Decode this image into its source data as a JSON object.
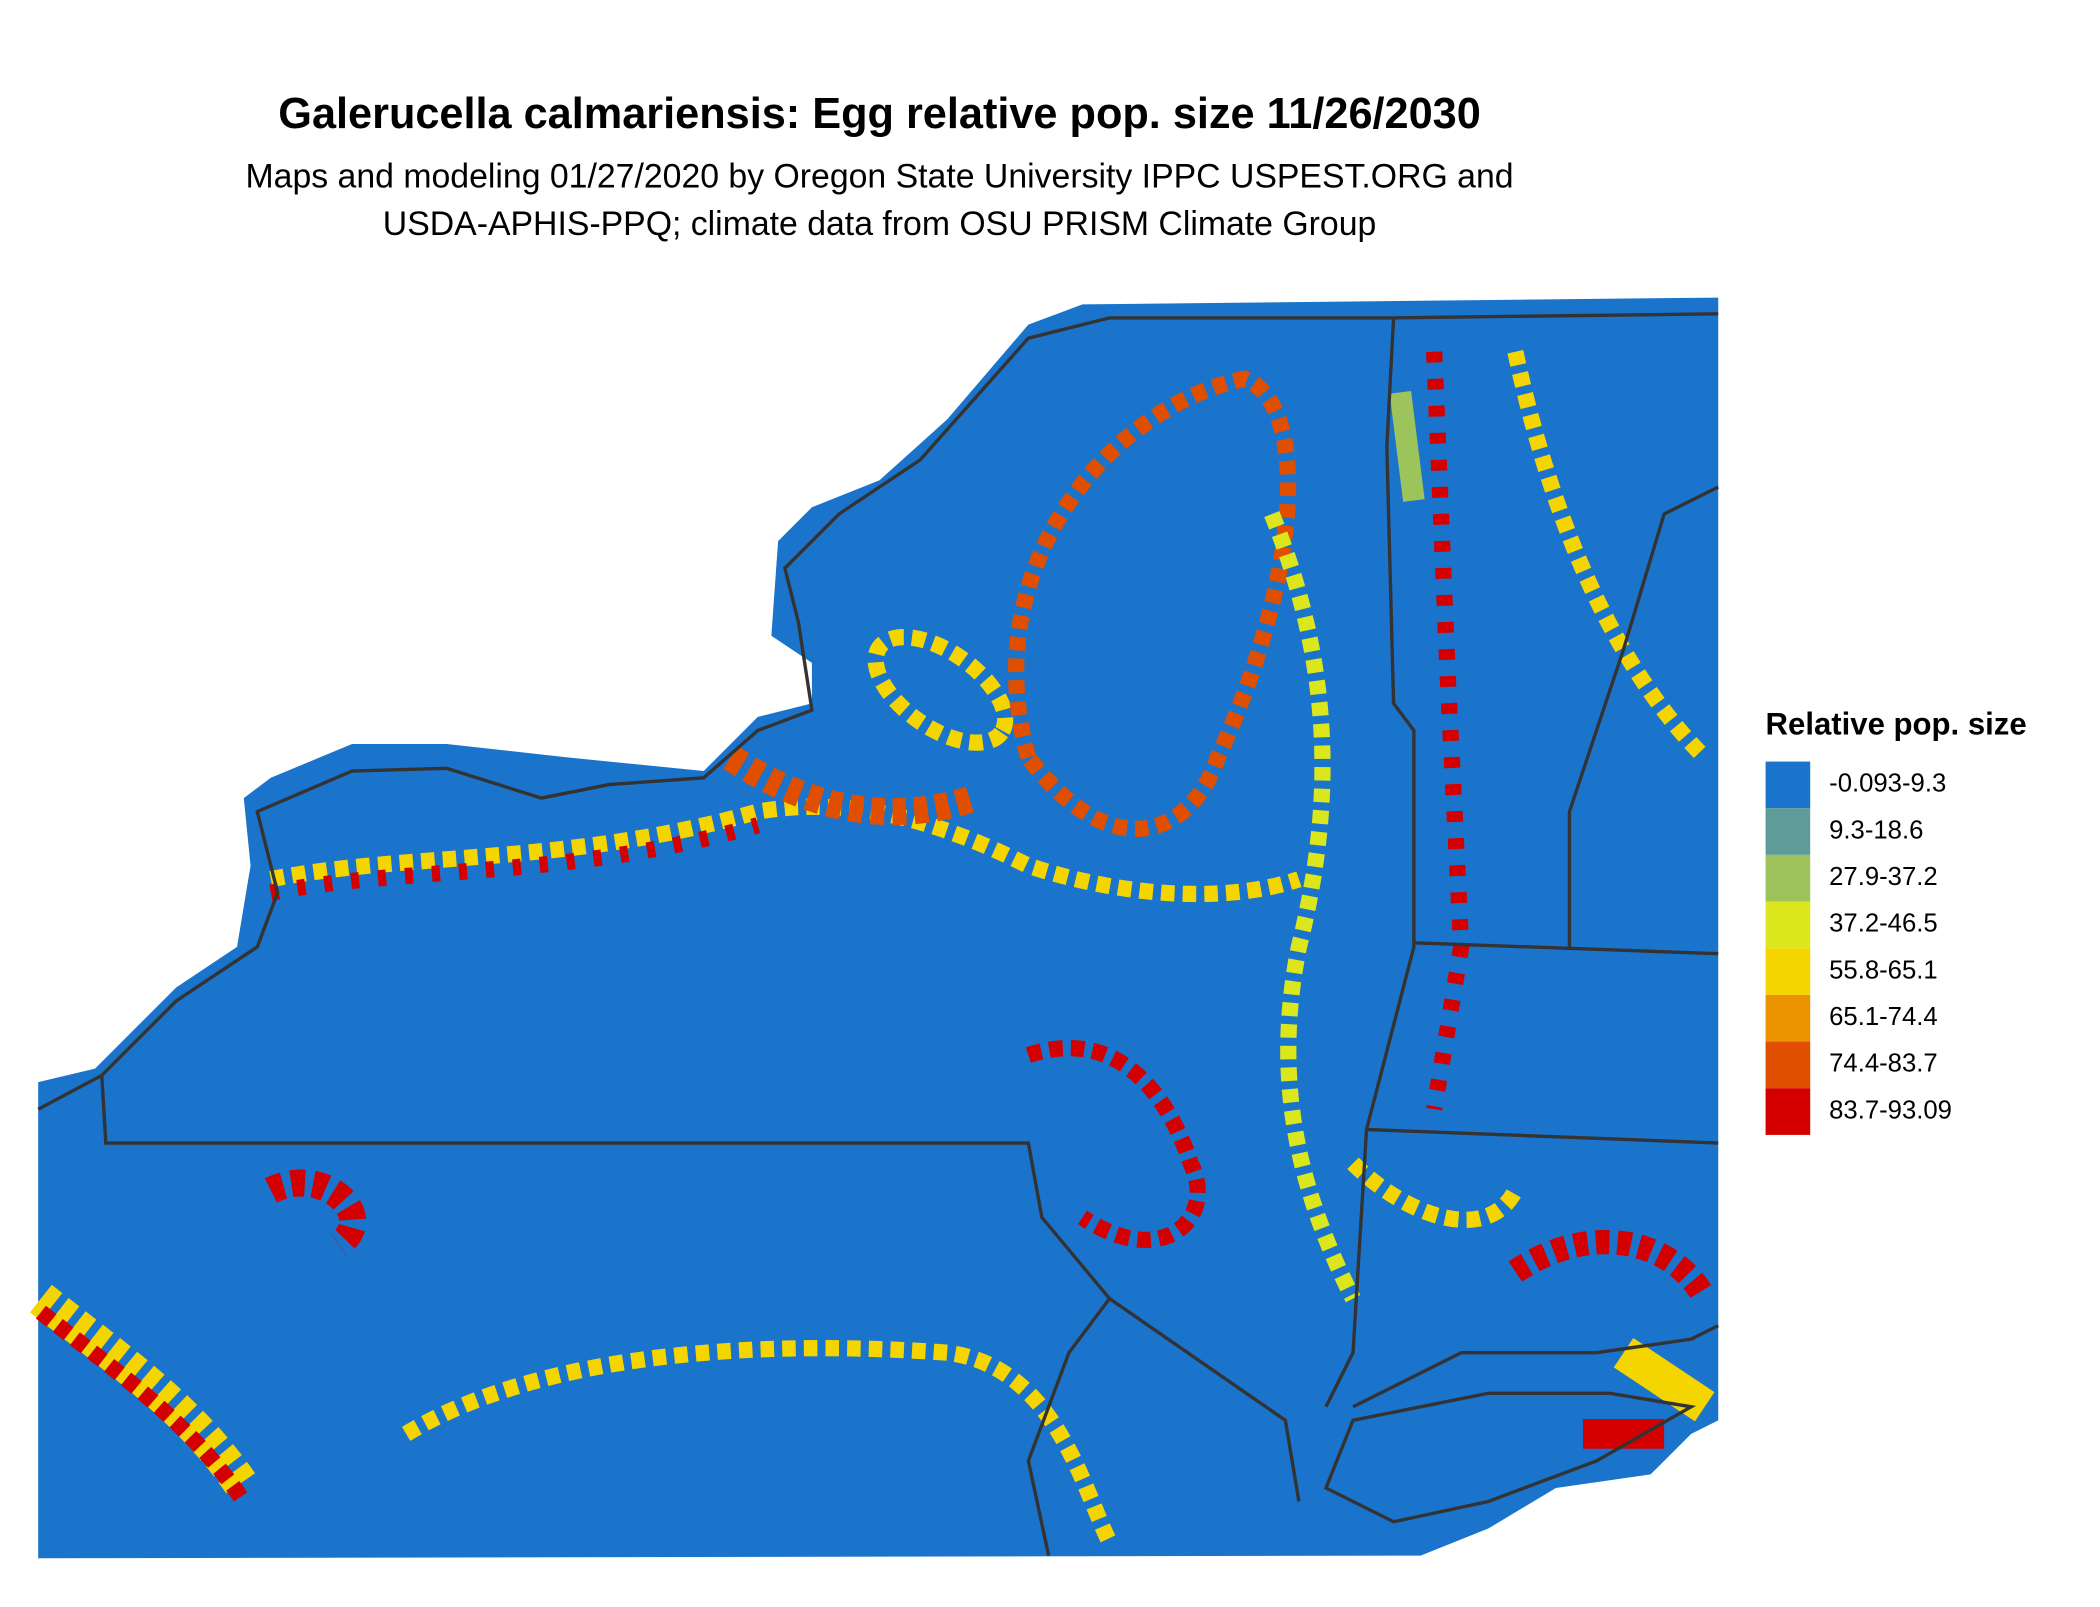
{
  "title": "Galerucella calmariensis: Egg relative pop. size 11/26/2030",
  "subtitle": [
    "Maps and modeling 01/27/2020 by Oregon State University IPPC USPEST.ORG and",
    "USDA-APHIS-PPQ; climate data from OSU PRISM Climate Group"
  ],
  "legend": {
    "title": "Relative pop. size",
    "items": [
      {
        "label": "-0.093-9.3",
        "color": "#1a74cc"
      },
      {
        "label": "9.3-18.6",
        "color": "#5f9c97"
      },
      {
        "label": "27.9-37.2",
        "color": "#9cc45a"
      },
      {
        "label": "37.2-46.5",
        "color": "#dbe61c"
      },
      {
        "label": "55.8-65.1",
        "color": "#f5d500"
      },
      {
        "label": "65.1-74.4",
        "color": "#ec9400"
      },
      {
        "label": "74.4-83.7",
        "color": "#e04e00"
      },
      {
        "label": "83.7-93.09",
        "color": "#d40000"
      }
    ]
  }
}
